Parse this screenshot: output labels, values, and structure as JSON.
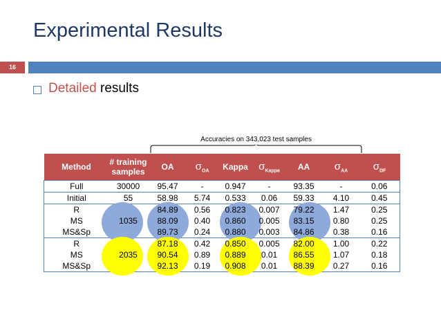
{
  "title": "Experimental Results",
  "slide_number": "16",
  "bullet": {
    "highlight": "Detailed",
    "rest": "results"
  },
  "annotation": "Accuracies on 343,023 test samples",
  "table": {
    "headers": {
      "method": "Method",
      "training": "# training samples",
      "oa": "OA",
      "sigma_oa_sym": "σ",
      "sigma_oa_sub": "OA",
      "kappa": "Kappa",
      "sigma_kappa_sym": "σ",
      "sigma_kappa_sub": "Kappa",
      "aa": "AA",
      "sigma_aa_sym": "σ",
      "sigma_aa_sub": "AA",
      "sigma_df_sym": "σ",
      "sigma_df_sub": "DF"
    },
    "rows": [
      [
        "Full",
        "30000",
        "95.47",
        "-",
        "0.947",
        "-",
        "93.35",
        "-",
        "0.06"
      ],
      [
        "Initial",
        "55",
        "58.98",
        "5.74",
        "0.533",
        "0.06",
        "59.33",
        "4.10",
        "0.45"
      ],
      [
        "R",
        "",
        "84.89",
        "0.56",
        "0.823",
        "0.007",
        "79.22",
        "1.47",
        "0.25"
      ],
      [
        "MS",
        "1035",
        "88.09",
        "0.40",
        "0.860",
        "0.005",
        "83.15",
        "0.80",
        "0.25"
      ],
      [
        "MS&Sp",
        "",
        "89.73",
        "0.24",
        "0.880",
        "0.003",
        "84.86",
        "0.38",
        "0.16"
      ],
      [
        "R",
        "",
        "87.18",
        "0.42",
        "0.850",
        "0.005",
        "82.00",
        "1.00",
        "0.22"
      ],
      [
        "MS",
        "2035",
        "90.54",
        "0.89",
        "0.889",
        "0.01",
        "86.55",
        "1.07",
        "0.18"
      ],
      [
        "MS&Sp",
        "",
        "92.13",
        "0.19",
        "0.908",
        "0.01",
        "88.39",
        "0.27",
        "0.16"
      ]
    ]
  },
  "colors": {
    "accent_red": "#c0504d",
    "accent_blue": "#4f81bd",
    "title_navy": "#1f3864",
    "highlight_blue": "#8eaadb",
    "highlight_yellow": "#ffff00"
  }
}
